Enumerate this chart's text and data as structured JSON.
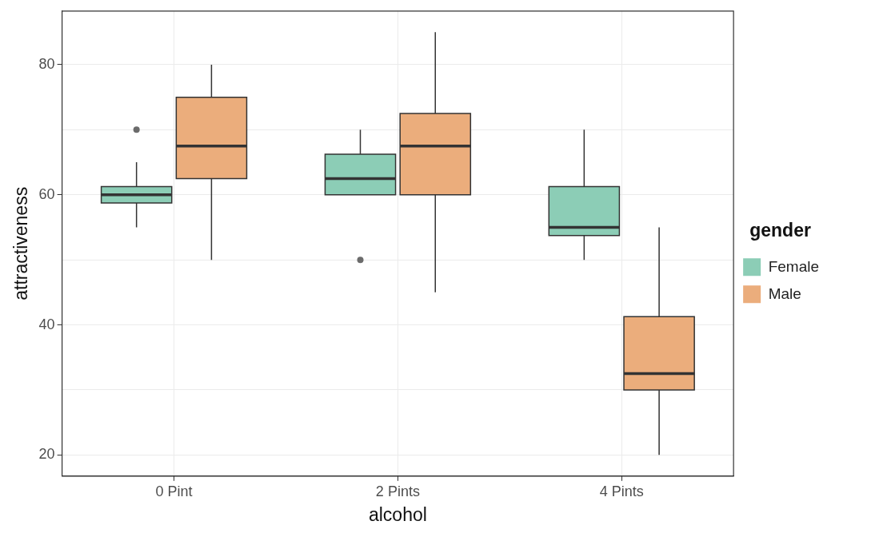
{
  "chart_data": {
    "type": "box",
    "xlabel": "alcohol",
    "ylabel": "attractiveness",
    "legend_title": "gender",
    "categories": [
      "0 Pint",
      "2 Pints",
      "4 Pints"
    ],
    "series": [
      {
        "name": "Female",
        "color": "#8ccdb6",
        "boxes": [
          {
            "low": 55,
            "q1": 58.75,
            "median": 60,
            "q3": 61.25,
            "high": 65,
            "outliers": [
              70
            ]
          },
          {
            "low": 60,
            "q1": 60,
            "median": 62.5,
            "q3": 66.25,
            "high": 70,
            "outliers": [
              50
            ]
          },
          {
            "low": 50,
            "q1": 53.75,
            "median": 55,
            "q3": 61.25,
            "high": 70
          }
        ]
      },
      {
        "name": "Male",
        "color": "#ebad7c",
        "boxes": [
          {
            "low": 50,
            "q1": 62.5,
            "median": 67.5,
            "q3": 75,
            "high": 80
          },
          {
            "low": 45,
            "q1": 60,
            "median": 67.5,
            "q3": 72.5,
            "high": 85
          },
          {
            "low": 20,
            "q1": 30,
            "median": 32.5,
            "q3": 41.25,
            "high": 55
          }
        ]
      }
    ],
    "ylim": [
      16.75,
      88.25
    ],
    "yticks": [
      20,
      {
        "value": 30,
        "label": null
      },
      40,
      {
        "value": 50,
        "label": null
      },
      60,
      {
        "value": 70,
        "label": null
      },
      80
    ],
    "grid": true,
    "legend": "right"
  }
}
